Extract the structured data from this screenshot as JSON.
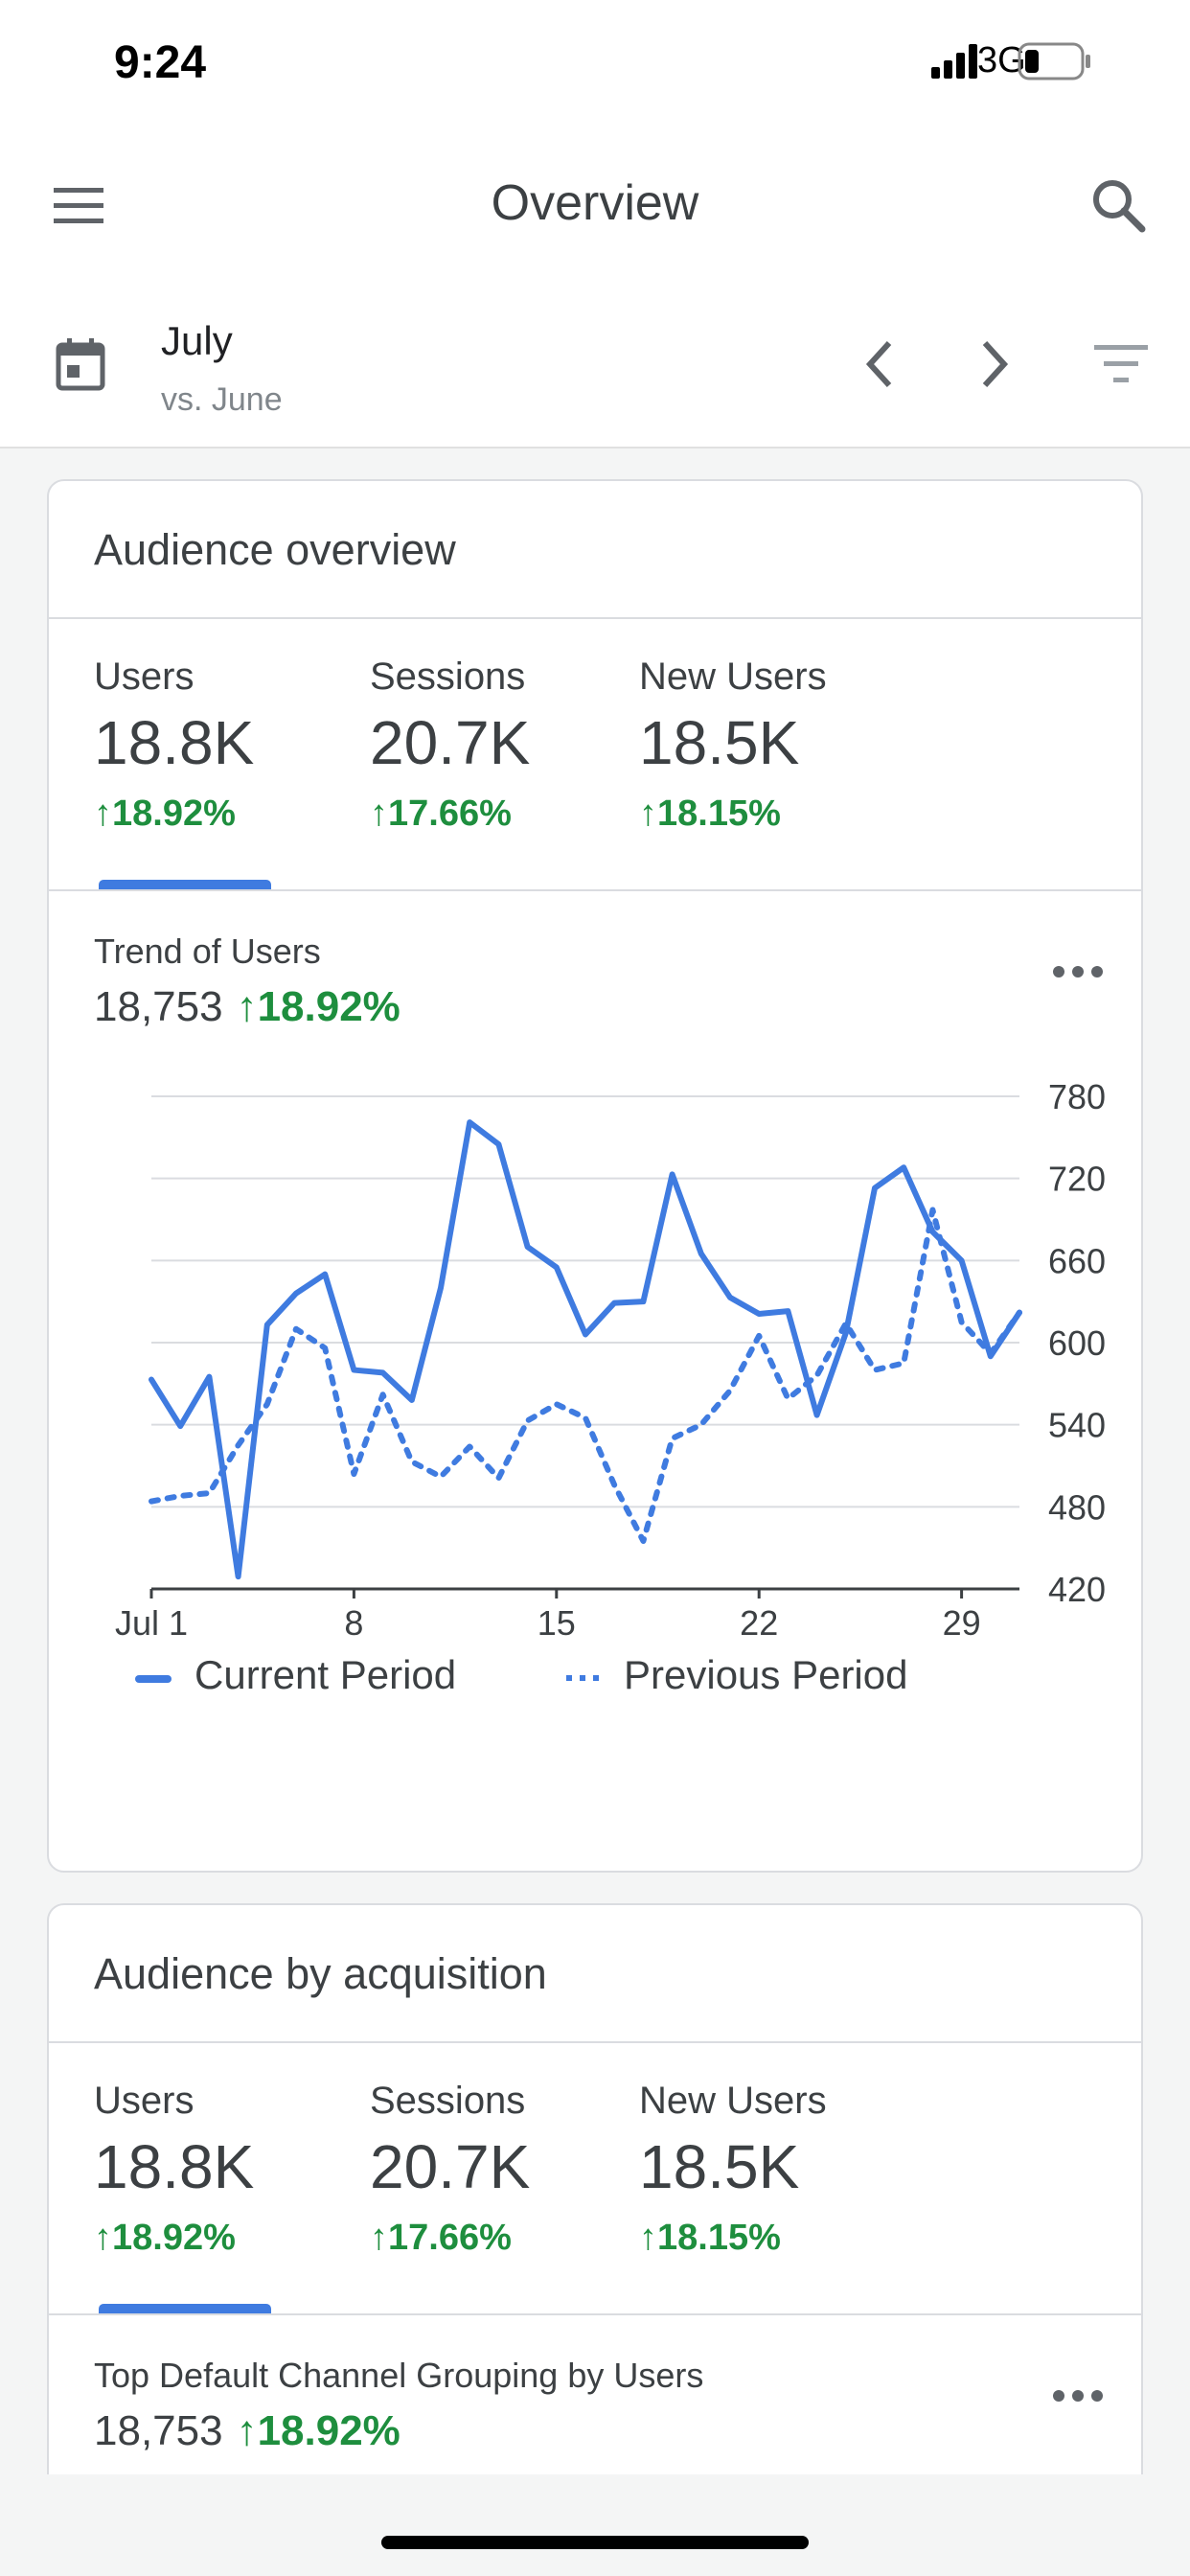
{
  "status_bar": {
    "time": "9:24",
    "network": "3G"
  },
  "app_bar": {
    "title": "Overview",
    "menu_icon": "menu-icon",
    "search_icon": "search-icon"
  },
  "date_selector": {
    "month": "July",
    "comparison": "vs. June"
  },
  "audience_overview": {
    "title": "Audience overview",
    "metrics": [
      {
        "label": "Users",
        "value": "18.8K",
        "change": "18.92%"
      },
      {
        "label": "Sessions",
        "value": "20.7K",
        "change": "17.66%"
      },
      {
        "label": "New Users",
        "value": "18.5K",
        "change": "18.15%"
      }
    ],
    "selected_metric": "Users",
    "trend": {
      "label": "Trend of Users",
      "value": "18,753",
      "change": "18.92%"
    }
  },
  "audience_acquisition": {
    "title": "Audience by acquisition",
    "metrics": [
      {
        "label": "Users",
        "value": "18.8K",
        "change": "18.92%"
      },
      {
        "label": "Sessions",
        "value": "20.7K",
        "change": "17.66%"
      },
      {
        "label": "New Users",
        "value": "18.5K",
        "change": "18.15%"
      }
    ],
    "selected_metric": "Users",
    "trend": {
      "label": "Top Default Channel Grouping by Users",
      "value": "18,753",
      "change": "18.92%"
    }
  },
  "colors": {
    "accent": "#3f7be0",
    "positive": "#1e8e3e",
    "text": "#3c4043"
  },
  "chart_data": {
    "type": "line",
    "x": [
      1,
      2,
      3,
      4,
      5,
      6,
      7,
      8,
      9,
      10,
      11,
      12,
      13,
      14,
      15,
      16,
      17,
      18,
      19,
      20,
      21,
      22,
      23,
      24,
      25,
      26,
      27,
      28,
      29,
      30,
      31
    ],
    "x_ticks": [
      1,
      8,
      15,
      22,
      29
    ],
    "x_tick_labels": [
      "Jul 1",
      "8",
      "15",
      "22",
      "29"
    ],
    "y_ticks": [
      420,
      480,
      540,
      600,
      660,
      720,
      780
    ],
    "ylim": [
      420,
      780
    ],
    "axis_position": "right",
    "grid": true,
    "series": [
      {
        "name": "Current Period",
        "style": "solid",
        "values": [
          573,
          539,
          575,
          429,
          613,
          636,
          650,
          580,
          578,
          558,
          640,
          761,
          745,
          670,
          655,
          606,
          629,
          630,
          723,
          665,
          633,
          621,
          623,
          547,
          607,
          713,
          728,
          681,
          660,
          590,
          622
        ]
      },
      {
        "name": "Previous Period",
        "style": "dotted",
        "values": [
          484,
          488,
          490,
          525,
          555,
          610,
          596,
          504,
          562,
          513,
          502,
          524,
          501,
          543,
          555,
          545,
          496,
          455,
          530,
          540,
          565,
          605,
          559,
          576,
          614,
          580,
          585,
          697,
          615,
          592,
          622
        ]
      }
    ]
  }
}
